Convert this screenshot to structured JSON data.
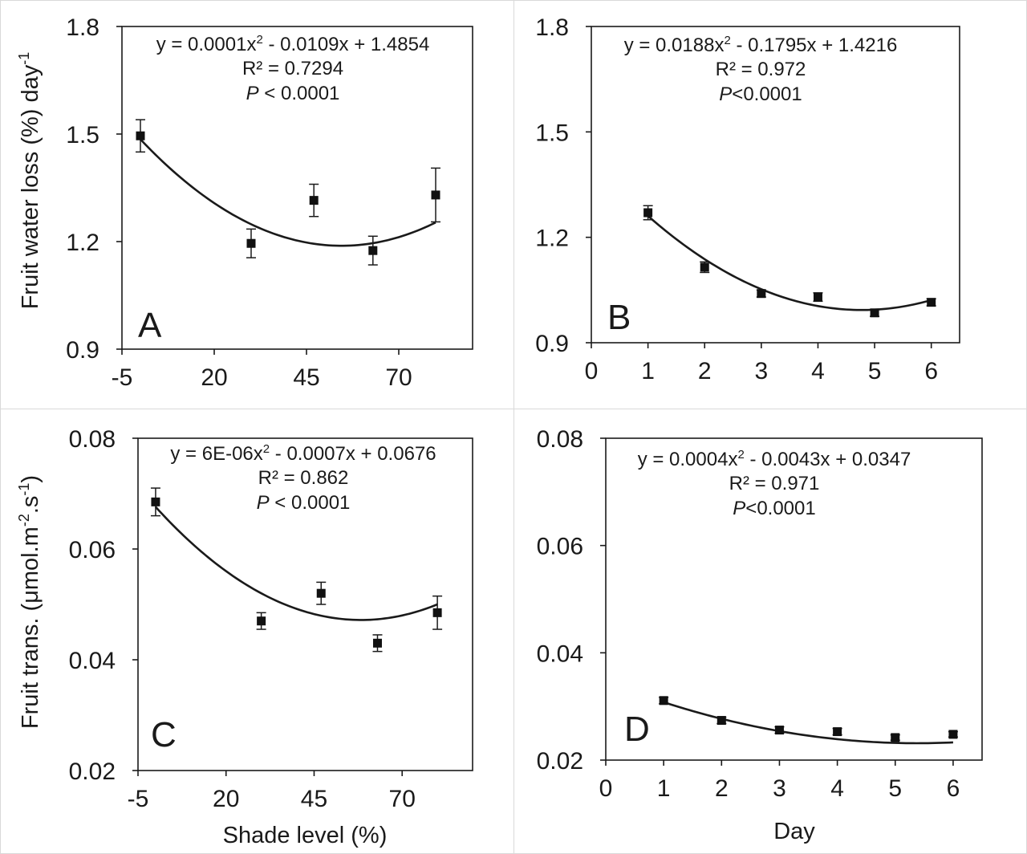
{
  "figure": {
    "x_label_shade": "Shade level (%)",
    "x_label_day": "Day",
    "y_label_top": "Fruit water loss (%) day",
    "y_label_top_sup": "-1",
    "y_label_bottom_a": "Fruit trans. (μmol.m",
    "y_label_bottom_sup1": "-2",
    "y_label_bottom_b": ".s",
    "y_label_bottom_sup2": "-1",
    "y_label_bottom_c": ")"
  },
  "chart_data": [
    {
      "id": "A",
      "type": "scatter",
      "panel_letter": "A",
      "xlabel": "",
      "ylabel": "Fruit water loss (%) day-1",
      "xlim": [
        -5,
        90
      ],
      "ylim": [
        0.9,
        1.8
      ],
      "xticks": [
        -5,
        20,
        45,
        70
      ],
      "yticks": [
        0.9,
        1.2,
        1.5,
        1.8
      ],
      "ytick_labels": [
        "0.9",
        "1.2",
        "1.5",
        "1.8"
      ],
      "points": [
        {
          "x": 0,
          "y": 1.495,
          "err": 0.045
        },
        {
          "x": 30,
          "y": 1.195,
          "err": 0.04
        },
        {
          "x": 47,
          "y": 1.315,
          "err": 0.045
        },
        {
          "x": 63,
          "y": 1.175,
          "err": 0.04
        },
        {
          "x": 80,
          "y": 1.33,
          "err": 0.075
        }
      ],
      "fit": {
        "a": 0.0001,
        "b": -0.0109,
        "c": 1.4854,
        "x_from": 0,
        "x_to": 80
      },
      "equation": [
        "y = 0.0001x",
        "2",
        " - 0.0109x + 1.4854"
      ],
      "r2": "R² = 0.7294",
      "p_italic": "P",
      "p_rest": " < 0.0001"
    },
    {
      "id": "B",
      "type": "scatter",
      "panel_letter": "B",
      "xlabel": "",
      "ylabel": "",
      "xlim": [
        0,
        6.5
      ],
      "ylim": [
        0.9,
        1.8
      ],
      "xticks": [
        0,
        1,
        2,
        3,
        4,
        5,
        6
      ],
      "yticks": [
        0.9,
        1.2,
        1.5,
        1.8
      ],
      "ytick_labels": [
        "0.9",
        "1.2",
        "1.5",
        "1.8"
      ],
      "points": [
        {
          "x": 1,
          "y": 1.27,
          "err": 0.02
        },
        {
          "x": 2,
          "y": 1.115,
          "err": 0.015
        },
        {
          "x": 3,
          "y": 1.04,
          "err": 0.01
        },
        {
          "x": 4,
          "y": 1.03,
          "err": 0.012
        },
        {
          "x": 5,
          "y": 0.985,
          "err": 0.01
        },
        {
          "x": 6,
          "y": 1.015,
          "err": 0.01
        }
      ],
      "fit": {
        "a": 0.0188,
        "b": -0.1795,
        "c": 1.4216,
        "x_from": 1,
        "x_to": 6
      },
      "equation": [
        "y = 0.0188x",
        "2",
        " - 0.1795x + 1.4216"
      ],
      "r2": "R² = 0.972",
      "p_italic": "P",
      "p_rest": "<0.0001"
    },
    {
      "id": "C",
      "type": "scatter",
      "panel_letter": "C",
      "xlabel": "Shade level (%)",
      "ylabel": "Fruit trans. (μmol.m-2.s-1)",
      "xlim": [
        -5,
        90
      ],
      "ylim": [
        0.02,
        0.08
      ],
      "xticks": [
        -5,
        20,
        45,
        70
      ],
      "yticks": [
        0.02,
        0.04,
        0.06,
        0.08
      ],
      "ytick_labels": [
        "0.02",
        "0.04",
        "0.06",
        "0.08"
      ],
      "points": [
        {
          "x": 0,
          "y": 0.0685,
          "err": 0.0025
        },
        {
          "x": 30,
          "y": 0.047,
          "err": 0.0015
        },
        {
          "x": 47,
          "y": 0.052,
          "err": 0.002
        },
        {
          "x": 63,
          "y": 0.043,
          "err": 0.0015
        },
        {
          "x": 80,
          "y": 0.0485,
          "err": 0.003
        }
      ],
      "fit": {
        "a": 6e-06,
        "b": -0.0007,
        "c": 0.0676,
        "x_from": 0,
        "x_to": 80
      },
      "equation": [
        "y = 6E-06x",
        "2",
        " - 0.0007x + 0.0676"
      ],
      "r2": "R² = 0.862",
      "p_italic": "P",
      "p_rest": " < 0.0001"
    },
    {
      "id": "D",
      "type": "scatter",
      "panel_letter": "D",
      "xlabel": "Day",
      "ylabel": "",
      "xlim": [
        0,
        6.5
      ],
      "ylim": [
        0.02,
        0.08
      ],
      "xticks": [
        0,
        1,
        2,
        3,
        4,
        5,
        6
      ],
      "yticks": [
        0.02,
        0.04,
        0.06,
        0.08
      ],
      "ytick_labels": [
        "0.02",
        "0.04",
        "0.06",
        "0.08"
      ],
      "points": [
        {
          "x": 1,
          "y": 0.0311,
          "err": 0.0006
        },
        {
          "x": 2,
          "y": 0.0274,
          "err": 0.0006
        },
        {
          "x": 3,
          "y": 0.0256,
          "err": 0.0006
        },
        {
          "x": 4,
          "y": 0.0253,
          "err": 0.0006
        },
        {
          "x": 5,
          "y": 0.0242,
          "err": 0.0005
        },
        {
          "x": 6,
          "y": 0.0248,
          "err": 0.0005
        }
      ],
      "fit": {
        "a": 0.0004,
        "b": -0.0043,
        "c": 0.0347,
        "x_from": 1,
        "x_to": 6
      },
      "equation": [
        "y = 0.0004x",
        "2",
        " - 0.0043x + 0.0347"
      ],
      "r2": "R² = 0.971",
      "p_italic": "P",
      "p_rest": "<0.0001"
    }
  ]
}
